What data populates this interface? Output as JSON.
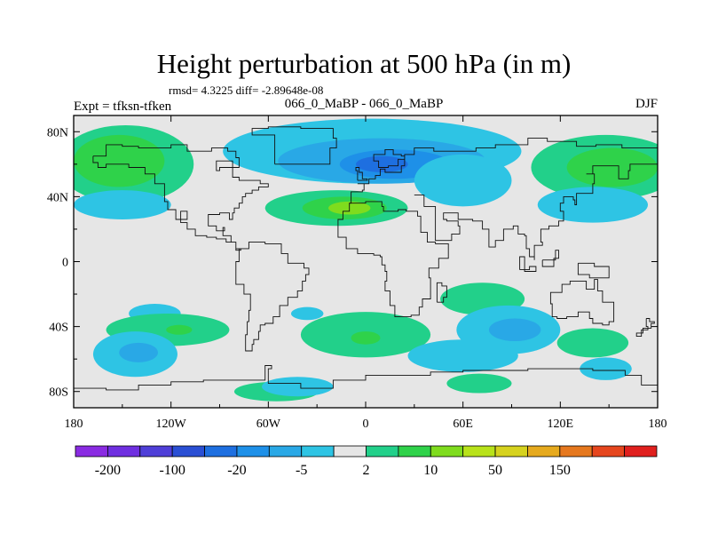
{
  "chart_data": {
    "type": "heatmap",
    "title": "Height perturbation at 500 hPa (in m)",
    "stats_line": "rmsd= 4.3225  diff= -2.89648e-08",
    "left_label": "Expt = tfksn-tfken",
    "center_label": "066_0_MaBP - 066_0_MaBP",
    "right_label": "DJF",
    "x_range": [
      -180,
      180
    ],
    "y_range": [
      -90,
      90
    ],
    "x_ticks": [
      {
        "value": -180,
        "label": "180"
      },
      {
        "value": -120,
        "label": "120W"
      },
      {
        "value": -60,
        "label": "60W"
      },
      {
        "value": 0,
        "label": "0"
      },
      {
        "value": 60,
        "label": "60E"
      },
      {
        "value": 120,
        "label": "120E"
      },
      {
        "value": 180,
        "label": "180"
      }
    ],
    "y_ticks": [
      {
        "value": 80,
        "label": "80N"
      },
      {
        "value": 40,
        "label": "40N"
      },
      {
        "value": 0,
        "label": "0"
      },
      {
        "value": -40,
        "label": "40S"
      },
      {
        "value": -80,
        "label": "80S"
      }
    ],
    "colorbar": {
      "levels": [
        -300,
        -200,
        -150,
        -100,
        -50,
        -20,
        -10,
        -5,
        -2,
        2,
        5,
        10,
        20,
        50,
        100,
        150,
        200,
        300
      ],
      "colors": [
        "#8a2be2",
        "#6f2fe0",
        "#4f3fd8",
        "#2a4fd4",
        "#1e6fe0",
        "#1e90e8",
        "#29a8e6",
        "#2ec4e4",
        "#e6e6e6",
        "#22d08a",
        "#2fd24a",
        "#7fdc1e",
        "#b8e21a",
        "#d6d21e",
        "#e6aa1e",
        "#e6781e",
        "#e6461e",
        "#e0201e"
      ],
      "labels": [
        {
          "value": -200,
          "text": "-200"
        },
        {
          "value": -100,
          "text": "-100"
        },
        {
          "value": -20,
          "text": "-20"
        },
        {
          "value": -5,
          "text": "-5"
        },
        {
          "value": 2,
          "text": "2"
        },
        {
          "value": 10,
          "text": "10"
        },
        {
          "value": 50,
          "text": "50"
        },
        {
          "value": 150,
          "text": "150"
        }
      ]
    },
    "features": [
      {
        "lon": -148,
        "lat": 60,
        "rlon": 42,
        "rlat": 24,
        "level": 1
      },
      {
        "lon": -152,
        "lat": 62,
        "rlon": 28,
        "rlat": 16,
        "level": 2
      },
      {
        "lon": 148,
        "lat": 58,
        "rlon": 46,
        "rlat": 20,
        "level": 1
      },
      {
        "lon": 152,
        "lat": 58,
        "rlon": 28,
        "rlat": 12,
        "level": 2
      },
      {
        "lon": 4,
        "lat": 68,
        "rlon": 92,
        "rlat": 20,
        "level": -1
      },
      {
        "lon": 10,
        "lat": 62,
        "rlon": 64,
        "rlat": 14,
        "level": -2
      },
      {
        "lon": 18,
        "lat": 60,
        "rlon": 34,
        "rlat": 9,
        "level": -3
      },
      {
        "lon": 10,
        "lat": 60,
        "rlon": 16,
        "rlat": 5,
        "level": -4
      },
      {
        "lon": 60,
        "lat": 50,
        "rlon": 30,
        "rlat": 16,
        "level": -1
      },
      {
        "lon": -18,
        "lat": 33,
        "rlon": 44,
        "rlat": 11,
        "level": 1
      },
      {
        "lon": -13,
        "lat": 33,
        "rlon": 26,
        "rlat": 7,
        "level": 2
      },
      {
        "lon": -10,
        "lat": 33,
        "rlon": 13,
        "rlat": 4,
        "level": 3
      },
      {
        "lon": -150,
        "lat": 35,
        "rlon": 30,
        "rlat": 9,
        "level": -1
      },
      {
        "lon": 140,
        "lat": 35,
        "rlon": 34,
        "rlat": 11,
        "level": -1
      },
      {
        "lon": 72,
        "lat": -23,
        "rlon": 26,
        "rlat": 10,
        "level": 1
      },
      {
        "lon": -130,
        "lat": -32,
        "rlon": 16,
        "rlat": 6,
        "level": -1
      },
      {
        "lon": -36,
        "lat": -32,
        "rlon": 10,
        "rlat": 4,
        "level": -1
      },
      {
        "lon": -122,
        "lat": -42,
        "rlon": 38,
        "rlat": 10,
        "level": 1
      },
      {
        "lon": -115,
        "lat": -42,
        "rlon": 8,
        "rlat": 3,
        "level": 2
      },
      {
        "lon": 0,
        "lat": -45,
        "rlon": 40,
        "rlat": 14,
        "level": 1
      },
      {
        "lon": 0,
        "lat": -47,
        "rlon": 9,
        "rlat": 4,
        "level": 2
      },
      {
        "lon": -142,
        "lat": -57,
        "rlon": 26,
        "rlat": 14,
        "level": -1
      },
      {
        "lon": -140,
        "lat": -56,
        "rlon": 12,
        "rlat": 6,
        "level": -2
      },
      {
        "lon": 88,
        "lat": -42,
        "rlon": 32,
        "rlat": 15,
        "level": -1
      },
      {
        "lon": 92,
        "lat": -42,
        "rlon": 16,
        "rlat": 7,
        "level": -2
      },
      {
        "lon": 60,
        "lat": -58,
        "rlon": 34,
        "rlat": 10,
        "level": -1
      },
      {
        "lon": 140,
        "lat": -50,
        "rlon": 22,
        "rlat": 9,
        "level": 1
      },
      {
        "lon": 148,
        "lat": -66,
        "rlon": 16,
        "rlat": 7,
        "level": -1
      },
      {
        "lon": 70,
        "lat": -75,
        "rlon": 20,
        "rlat": 6,
        "level": 1
      },
      {
        "lon": -55,
        "lat": -80,
        "rlon": 26,
        "rlat": 6,
        "level": 1
      },
      {
        "lon": -42,
        "lat": -77,
        "rlon": 22,
        "rlat": 6,
        "level": -1
      }
    ],
    "coastlines": [
      [
        [
          -168,
          65
        ],
        [
          -160,
          72
        ],
        [
          -150,
          71
        ],
        [
          -140,
          70
        ],
        [
          -128,
          70
        ],
        [
          -120,
          72
        ],
        [
          -110,
          68
        ],
        [
          -95,
          70
        ],
        [
          -85,
          68
        ],
        [
          -80,
          64
        ],
        [
          -78,
          58
        ],
        [
          -90,
          56
        ],
        [
          -92,
          62
        ],
        [
          -82,
          52
        ],
        [
          -78,
          50
        ],
        [
          -65,
          48
        ],
        [
          -60,
          46
        ],
        [
          -66,
          44
        ],
        [
          -70,
          42
        ],
        [
          -74,
          40
        ],
        [
          -76,
          36
        ],
        [
          -78,
          33
        ],
        [
          -81,
          30
        ],
        [
          -82,
          26
        ],
        [
          -84,
          30
        ],
        [
          -90,
          29
        ],
        [
          -97,
          27
        ],
        [
          -97,
          22
        ],
        [
          -92,
          19
        ],
        [
          -87,
          21
        ],
        [
          -88,
          16
        ],
        [
          -83,
          12
        ],
        [
          -80,
          8
        ],
        [
          -77,
          7
        ],
        [
          -80,
          12
        ],
        [
          -86,
          14
        ],
        [
          -92,
          15
        ],
        [
          -98,
          16
        ],
        [
          -105,
          20
        ],
        [
          -110,
          24
        ],
        [
          -114,
          31
        ],
        [
          -110,
          26
        ],
        [
          -117,
          32
        ],
        [
          -122,
          37
        ],
        [
          -124,
          42
        ],
        [
          -124,
          48
        ],
        [
          -130,
          54
        ],
        [
          -136,
          58
        ],
        [
          -146,
          60
        ],
        [
          -152,
          60
        ],
        [
          -160,
          58
        ],
        [
          -165,
          61
        ],
        [
          -168,
          65
        ]
      ],
      [
        [
          -78,
          8
        ],
        [
          -72,
          12
        ],
        [
          -62,
          11
        ],
        [
          -52,
          5
        ],
        [
          -48,
          -1
        ],
        [
          -38,
          -4
        ],
        [
          -35,
          -8
        ],
        [
          -37,
          -12
        ],
        [
          -39,
          -18
        ],
        [
          -42,
          -22
        ],
        [
          -48,
          -27
        ],
        [
          -53,
          -34
        ],
        [
          -57,
          -38
        ],
        [
          -62,
          -39
        ],
        [
          -65,
          -43
        ],
        [
          -66,
          -48
        ],
        [
          -69,
          -51
        ],
        [
          -70,
          -55
        ],
        [
          -74,
          -52
        ],
        [
          -74,
          -45
        ],
        [
          -73,
          -37
        ],
        [
          -72,
          -30
        ],
        [
          -71,
          -20
        ],
        [
          -75,
          -14
        ],
        [
          -80,
          -6
        ],
        [
          -80,
          0
        ],
        [
          -78,
          8
        ]
      ],
      [
        [
          -17,
          21
        ],
        [
          -17,
          15
        ],
        [
          -12,
          8
        ],
        [
          -5,
          5
        ],
        [
          5,
          4
        ],
        [
          9,
          3
        ],
        [
          10,
          -2
        ],
        [
          12,
          -6
        ],
        [
          13,
          -12
        ],
        [
          12,
          -18
        ],
        [
          15,
          -27
        ],
        [
          18,
          -34
        ],
        [
          23,
          -34
        ],
        [
          28,
          -33
        ],
        [
          33,
          -28
        ],
        [
          35,
          -23
        ],
        [
          40,
          -16
        ],
        [
          40,
          -10
        ],
        [
          39,
          -4
        ],
        [
          45,
          2
        ],
        [
          51,
          11
        ],
        [
          43,
          12
        ],
        [
          38,
          18
        ],
        [
          34,
          28
        ],
        [
          32,
          31
        ],
        [
          25,
          32
        ],
        [
          20,
          31
        ],
        [
          11,
          34
        ],
        [
          10,
          37
        ],
        [
          0,
          36
        ],
        [
          -5,
          36
        ],
        [
          -10,
          31
        ],
        [
          -14,
          26
        ],
        [
          -17,
          21
        ]
      ],
      [
        [
          -10,
          36
        ],
        [
          -9,
          43
        ],
        [
          -2,
          44
        ],
        [
          -1,
          48
        ],
        [
          -5,
          48
        ],
        [
          2,
          51
        ],
        [
          6,
          53
        ],
        [
          9,
          57
        ],
        [
          12,
          55
        ],
        [
          18,
          55
        ],
        [
          22,
          59
        ],
        [
          24,
          65
        ],
        [
          22,
          66
        ],
        [
          17,
          69
        ],
        [
          12,
          66
        ],
        [
          5,
          62
        ],
        [
          8,
          58
        ],
        [
          14,
          59
        ],
        [
          20,
          63
        ],
        [
          24,
          66
        ],
        [
          30,
          70
        ],
        [
          42,
          68
        ],
        [
          55,
          68
        ],
        [
          68,
          70
        ],
        [
          80,
          72
        ],
        [
          100,
          76
        ],
        [
          112,
          74
        ],
        [
          130,
          71
        ],
        [
          142,
          72
        ],
        [
          158,
          70
        ],
        [
          170,
          70
        ],
        [
          180,
          68
        ]
      ],
      [
        [
          30,
          41
        ],
        [
          36,
          37
        ],
        [
          36,
          34
        ],
        [
          43,
          13
        ],
        [
          53,
          17
        ],
        [
          58,
          22
        ],
        [
          57,
          25
        ],
        [
          50,
          26
        ],
        [
          48,
          30
        ],
        [
          57,
          26
        ],
        [
          66,
          25
        ],
        [
          72,
          20
        ],
        [
          76,
          9
        ],
        [
          80,
          13
        ],
        [
          85,
          20
        ],
        [
          91,
          22
        ],
        [
          94,
          17
        ],
        [
          98,
          16
        ],
        [
          99,
          8
        ],
        [
          101,
          3
        ],
        [
          104,
          1
        ],
        [
          104,
          10
        ],
        [
          109,
          12
        ],
        [
          108,
          20
        ],
        [
          113,
          22
        ],
        [
          119,
          25
        ],
        [
          122,
          31
        ],
        [
          120,
          36
        ],
        [
          122,
          40
        ],
        [
          128,
          38
        ],
        [
          129,
          35
        ],
        [
          130,
          42
        ],
        [
          140,
          48
        ],
        [
          141,
          54
        ],
        [
          136,
          54
        ],
        [
          140,
          59
        ],
        [
          150,
          59
        ],
        [
          156,
          51
        ],
        [
          162,
          56
        ],
        [
          163,
          60
        ],
        [
          180,
          65
        ]
      ],
      [
        [
          114,
          -22
        ],
        [
          114,
          -26
        ],
        [
          115,
          -34
        ],
        [
          118,
          -35
        ],
        [
          124,
          -34
        ],
        [
          131,
          -31
        ],
        [
          138,
          -35
        ],
        [
          140,
          -38
        ],
        [
          146,
          -39
        ],
        [
          150,
          -37
        ],
        [
          153,
          -32
        ],
        [
          153,
          -25
        ],
        [
          146,
          -18
        ],
        [
          143,
          -11
        ],
        [
          141,
          -17
        ],
        [
          136,
          -12
        ],
        [
          131,
          -12
        ],
        [
          126,
          -14
        ],
        [
          121,
          -19
        ],
        [
          114,
          -22
        ]
      ],
      [
        [
          173,
          -35
        ],
        [
          175,
          -37
        ],
        [
          178,
          -38
        ],
        [
          176,
          -41
        ],
        [
          171,
          -44
        ],
        [
          167,
          -46
        ],
        [
          170,
          -42
        ],
        [
          174,
          -40
        ],
        [
          173,
          -35
        ]
      ],
      [
        [
          -180,
          -78
        ],
        [
          -160,
          -79
        ],
        [
          -140,
          -76
        ],
        [
          -120,
          -74
        ],
        [
          -100,
          -73
        ],
        [
          -80,
          -73
        ],
        [
          -62,
          -64
        ],
        [
          -58,
          -66
        ],
        [
          -60,
          -75
        ],
        [
          -40,
          -78
        ],
        [
          -20,
          -73
        ],
        [
          0,
          -70
        ],
        [
          20,
          -70
        ],
        [
          40,
          -68
        ],
        [
          60,
          -67
        ],
        [
          80,
          -67
        ],
        [
          100,
          -66
        ],
        [
          120,
          -66
        ],
        [
          140,
          -67
        ],
        [
          160,
          -70
        ],
        [
          170,
          -76
        ],
        [
          180,
          -78
        ]
      ],
      [
        [
          -56,
          60
        ],
        [
          -44,
          60
        ],
        [
          -22,
          70
        ],
        [
          -18,
          76
        ],
        [
          -20,
          82
        ],
        [
          -40,
          83
        ],
        [
          -60,
          82
        ],
        [
          -70,
          78
        ],
        [
          -56,
          60
        ]
      ],
      [
        [
          95,
          -5
        ],
        [
          101,
          -3
        ],
        [
          105,
          -6
        ],
        [
          98,
          3
        ],
        [
          95,
          -5
        ]
      ],
      [
        [
          109,
          1
        ],
        [
          117,
          7
        ],
        [
          119,
          2
        ],
        [
          116,
          -3
        ],
        [
          109,
          1
        ]
      ],
      [
        [
          131,
          -1
        ],
        [
          141,
          -3
        ],
        [
          150,
          -10
        ],
        [
          138,
          -8
        ],
        [
          131,
          -1
        ]
      ],
      [
        [
          44,
          -25
        ],
        [
          48,
          -22
        ],
        [
          50,
          -15
        ],
        [
          47,
          -13
        ],
        [
          44,
          -16
        ],
        [
          44,
          -25
        ]
      ],
      [
        [
          -5,
          50
        ],
        [
          1,
          51
        ],
        [
          -2,
          55
        ],
        [
          -4,
          58
        ],
        [
          -6,
          56
        ],
        [
          -5,
          50
        ]
      ]
    ]
  }
}
